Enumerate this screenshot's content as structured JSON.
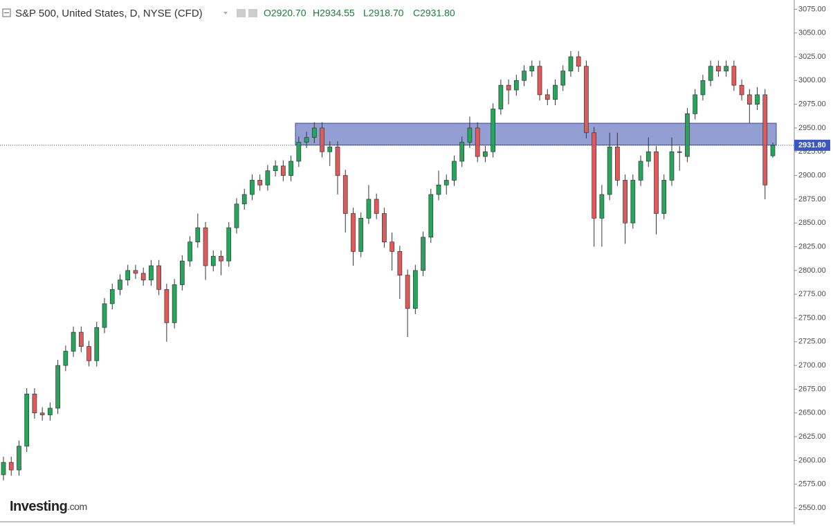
{
  "chart_data": {
    "type": "candlestick",
    "title": "S&P 500, United States, D, NYSE (CFD)",
    "ohlc_labels": [
      "O2920.70",
      "H2934.55",
      "L2918.70",
      "C2931.80"
    ],
    "logo": "Investing",
    "logo_suffix": ".com",
    "up_color": "#26a65b",
    "down_color": "#e05a5a",
    "zone_color": "#7886c8",
    "zone": [
      2932,
      2955
    ],
    "last_price": {
      "value": 2931.8,
      "label": "2931.80"
    },
    "open": [
      2585,
      2598,
      2590,
      2615,
      2670,
      2650,
      2648,
      2655,
      2700,
      2715,
      2735,
      2720,
      2705,
      2740,
      2765,
      2780,
      2790,
      2800,
      2797,
      2790,
      2805,
      2780,
      2745,
      2785,
      2810,
      2830,
      2845,
      2805,
      2815,
      2810,
      2845,
      2870,
      2880,
      2895,
      2890,
      2905,
      2910,
      2900,
      2915,
      2935,
      2940,
      2950,
      2925,
      2930,
      2900,
      2860,
      2820,
      2855,
      2875,
      2860,
      2830,
      2820,
      2795,
      2760,
      2800,
      2835,
      2880,
      2890,
      2895,
      2915,
      2935,
      2950,
      2920,
      2925,
      2970,
      2995,
      2990,
      3000,
      3010,
      3015,
      2985,
      2980,
      2995,
      3010,
      3025,
      3015,
      2945,
      2855,
      2880,
      2930,
      2895,
      2850,
      2895,
      2915,
      2925,
      2860,
      2895,
      2925,
      2920,
      2965,
      2985,
      3000,
      3015,
      3010,
      3015,
      2995,
      2985,
      2975,
      2985,
      2920.7
    ],
    "high": [
      2604,
      2604,
      2621,
      2676,
      2676,
      2656,
      2661,
      2706,
      2721,
      2741,
      2741,
      2726,
      2746,
      2771,
      2786,
      2796,
      2806,
      2806,
      2803,
      2811,
      2811,
      2786,
      2791,
      2816,
      2836,
      2860,
      2851,
      2821,
      2821,
      2851,
      2876,
      2886,
      2901,
      2901,
      2911,
      2916,
      2916,
      2921,
      2941,
      2946,
      2956,
      2956,
      2936,
      2936,
      2906,
      2866,
      2861,
      2890,
      2881,
      2866,
      2840,
      2826,
      2801,
      2806,
      2841,
      2886,
      2905,
      2901,
      2921,
      2941,
      2962,
      2956,
      2931,
      2976,
      3001,
      3001,
      3006,
      3016,
      3021,
      3021,
      2991,
      3001,
      3016,
      3031,
      3031,
      3021,
      2951,
      2890,
      2945,
      2945,
      2901,
      2901,
      2921,
      2940,
      2931,
      2901,
      2940,
      2931,
      2971,
      2991,
      3006,
      3021,
      3021,
      3021,
      3021,
      3001,
      2991,
      2993,
      2991,
      2934.55
    ],
    "low": [
      2579,
      2584,
      2584,
      2609,
      2644,
      2642,
      2642,
      2649,
      2694,
      2709,
      2714,
      2699,
      2699,
      2734,
      2759,
      2774,
      2784,
      2791,
      2784,
      2784,
      2774,
      2725,
      2739,
      2779,
      2804,
      2824,
      2790,
      2799,
      2795,
      2804,
      2839,
      2864,
      2874,
      2884,
      2884,
      2899,
      2894,
      2894,
      2909,
      2929,
      2934,
      2919,
      2910,
      2880,
      2840,
      2805,
      2814,
      2849,
      2854,
      2824,
      2800,
      2770,
      2730,
      2754,
      2794,
      2829,
      2874,
      2880,
      2889,
      2909,
      2929,
      2914,
      2914,
      2919,
      2964,
      2975,
      2984,
      2994,
      3004,
      2979,
      2974,
      2974,
      2989,
      3004,
      3009,
      2939,
      2825,
      2825,
      2874,
      2889,
      2828,
      2844,
      2889,
      2909,
      2838,
      2854,
      2889,
      2905,
      2914,
      2959,
      2979,
      2994,
      3004,
      3004,
      2989,
      2979,
      2955,
      2969,
      2875,
      2918.7
    ],
    "close": [
      2598,
      2590,
      2615,
      2670,
      2650,
      2648,
      2655,
      2700,
      2715,
      2735,
      2720,
      2705,
      2740,
      2765,
      2780,
      2790,
      2800,
      2797,
      2790,
      2805,
      2780,
      2745,
      2785,
      2810,
      2830,
      2845,
      2805,
      2815,
      2810,
      2845,
      2870,
      2880,
      2895,
      2890,
      2905,
      2910,
      2900,
      2915,
      2935,
      2940,
      2950,
      2925,
      2930,
      2900,
      2860,
      2820,
      2855,
      2875,
      2860,
      2830,
      2820,
      2795,
      2760,
      2800,
      2835,
      2880,
      2890,
      2895,
      2915,
      2935,
      2950,
      2920,
      2925,
      2970,
      2995,
      2990,
      3000,
      3010,
      3015,
      2985,
      2980,
      2995,
      3010,
      3025,
      3015,
      2945,
      2855,
      2880,
      2930,
      2895,
      2850,
      2895,
      2915,
      2925,
      2860,
      2895,
      2925,
      2925,
      2965,
      2985,
      3000,
      3015,
      3010,
      3015,
      2995,
      2985,
      2975,
      2985,
      2890,
      2931.8
    ],
    "ylim": [
      2542,
      3084
    ],
    "yticks": [
      {
        "value": 2550,
        "label": "2550.00"
      },
      {
        "value": 2575,
        "label": "2575.00"
      },
      {
        "value": 2600,
        "label": "2600.00"
      },
      {
        "value": 2625,
        "label": "2625.00"
      },
      {
        "value": 2650,
        "label": "2650.00"
      },
      {
        "value": 2675,
        "label": "2675.00"
      },
      {
        "value": 2700,
        "label": "2700.00"
      },
      {
        "value": 2725,
        "label": "2725.00"
      },
      {
        "value": 2750,
        "label": "2750.00"
      },
      {
        "value": 2775,
        "label": "2775.00"
      },
      {
        "value": 2800,
        "label": "2800.00"
      },
      {
        "value": 2825,
        "label": "2825.00"
      },
      {
        "value": 2850,
        "label": "2850.00"
      },
      {
        "value": 2875,
        "label": "2875.00"
      },
      {
        "value": 2900,
        "label": "2900.00"
      },
      {
        "value": 2925,
        "label": "2925.00"
      },
      {
        "value": 2950,
        "label": "2950.00"
      },
      {
        "value": 2975,
        "label": "2975.00"
      },
      {
        "value": 3000,
        "label": "3000.00"
      },
      {
        "value": 3025,
        "label": "3025.00"
      },
      {
        "value": 3050,
        "label": "3050.00"
      },
      {
        "value": 3075,
        "label": "3075.00"
      }
    ],
    "grid": false
  }
}
